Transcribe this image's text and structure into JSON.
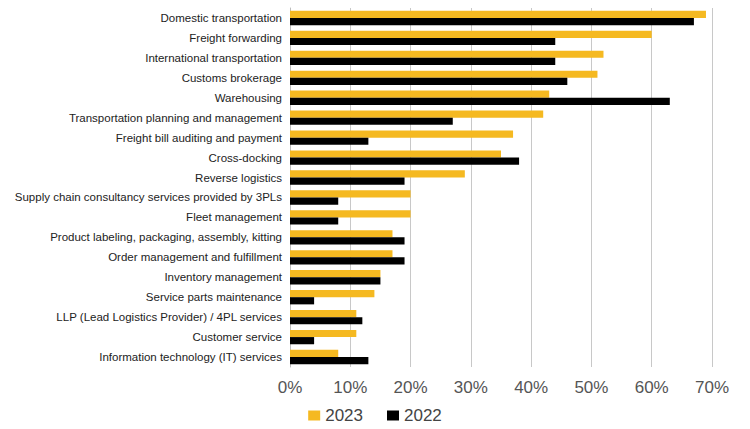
{
  "chart_data": {
    "type": "bar",
    "orientation": "horizontal",
    "categories": [
      "Domestic transportation",
      "Freight forwarding",
      "International transportation",
      "Customs brokerage",
      "Warehousing",
      "Transportation planning and management",
      "Freight bill auditing and payment",
      "Cross-docking",
      "Reverse logistics",
      "Supply chain consultancy services provided by 3PLs",
      "Fleet management",
      "Product labeling, packaging, assembly, kitting",
      "Order management and fulfillment",
      "Inventory management",
      "Service parts maintenance",
      "LLP (Lead Logistics Provider) / 4PL services",
      "Customer service",
      "Information technology (IT) services"
    ],
    "series": [
      {
        "name": "2023",
        "color": "#f5b921",
        "values": [
          69,
          60,
          52,
          51,
          43,
          42,
          37,
          35,
          29,
          20,
          20,
          17,
          17,
          15,
          14,
          11,
          11,
          8
        ]
      },
      {
        "name": "2022",
        "color": "#000000",
        "values": [
          67,
          44,
          44,
          46,
          63,
          27,
          13,
          38,
          19,
          8,
          8,
          19,
          19,
          15,
          4,
          12,
          4,
          13
        ]
      }
    ],
    "xlim": [
      0,
      70
    ],
    "xticks": [
      {
        "value": 0,
        "label": "0%"
      },
      {
        "value": 10,
        "label": "10%"
      },
      {
        "value": 20,
        "label": "20%"
      },
      {
        "value": 30,
        "label": "30%"
      },
      {
        "value": 40,
        "label": "40%"
      },
      {
        "value": 50,
        "label": "50%"
      },
      {
        "value": 60,
        "label": "60%"
      },
      {
        "value": 70,
        "label": "70%"
      }
    ],
    "grid": true,
    "legend": "bottom"
  }
}
